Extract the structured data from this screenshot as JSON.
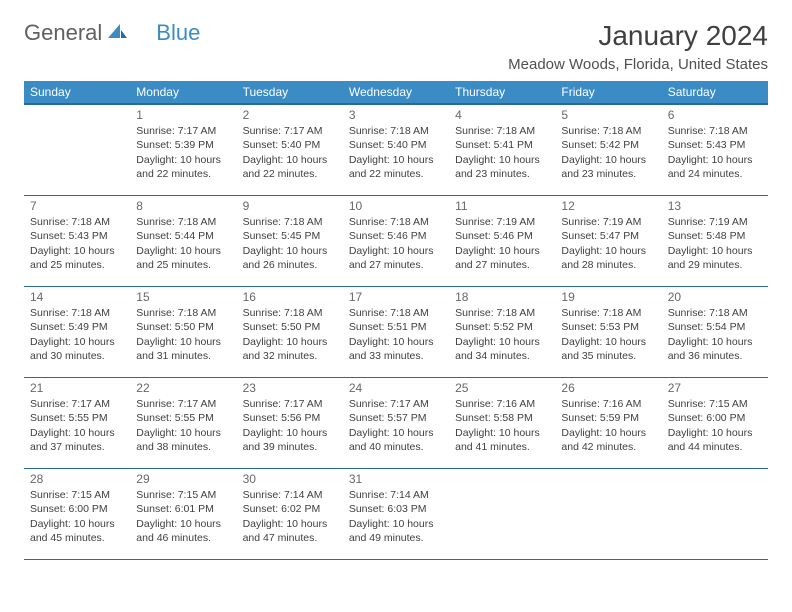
{
  "brand": {
    "text1": "General",
    "text2": "Blue",
    "icon_color": "#3b8bc4"
  },
  "title": "January 2024",
  "location": "Meadow Woods, Florida, United States",
  "weekday_header_bg": "#3b8bc4",
  "weekday_header_fg": "#ffffff",
  "border_color": "#2a6a9a",
  "weekdays": [
    "Sunday",
    "Monday",
    "Tuesday",
    "Wednesday",
    "Thursday",
    "Friday",
    "Saturday"
  ],
  "start_offset": 1,
  "days": [
    {
      "n": 1,
      "sunrise": "7:17 AM",
      "sunset": "5:39 PM",
      "daylight": "10 hours and 22 minutes."
    },
    {
      "n": 2,
      "sunrise": "7:17 AM",
      "sunset": "5:40 PM",
      "daylight": "10 hours and 22 minutes."
    },
    {
      "n": 3,
      "sunrise": "7:18 AM",
      "sunset": "5:40 PM",
      "daylight": "10 hours and 22 minutes."
    },
    {
      "n": 4,
      "sunrise": "7:18 AM",
      "sunset": "5:41 PM",
      "daylight": "10 hours and 23 minutes."
    },
    {
      "n": 5,
      "sunrise": "7:18 AM",
      "sunset": "5:42 PM",
      "daylight": "10 hours and 23 minutes."
    },
    {
      "n": 6,
      "sunrise": "7:18 AM",
      "sunset": "5:43 PM",
      "daylight": "10 hours and 24 minutes."
    },
    {
      "n": 7,
      "sunrise": "7:18 AM",
      "sunset": "5:43 PM",
      "daylight": "10 hours and 25 minutes."
    },
    {
      "n": 8,
      "sunrise": "7:18 AM",
      "sunset": "5:44 PM",
      "daylight": "10 hours and 25 minutes."
    },
    {
      "n": 9,
      "sunrise": "7:18 AM",
      "sunset": "5:45 PM",
      "daylight": "10 hours and 26 minutes."
    },
    {
      "n": 10,
      "sunrise": "7:18 AM",
      "sunset": "5:46 PM",
      "daylight": "10 hours and 27 minutes."
    },
    {
      "n": 11,
      "sunrise": "7:19 AM",
      "sunset": "5:46 PM",
      "daylight": "10 hours and 27 minutes."
    },
    {
      "n": 12,
      "sunrise": "7:19 AM",
      "sunset": "5:47 PM",
      "daylight": "10 hours and 28 minutes."
    },
    {
      "n": 13,
      "sunrise": "7:19 AM",
      "sunset": "5:48 PM",
      "daylight": "10 hours and 29 minutes."
    },
    {
      "n": 14,
      "sunrise": "7:18 AM",
      "sunset": "5:49 PM",
      "daylight": "10 hours and 30 minutes."
    },
    {
      "n": 15,
      "sunrise": "7:18 AM",
      "sunset": "5:50 PM",
      "daylight": "10 hours and 31 minutes."
    },
    {
      "n": 16,
      "sunrise": "7:18 AM",
      "sunset": "5:50 PM",
      "daylight": "10 hours and 32 minutes."
    },
    {
      "n": 17,
      "sunrise": "7:18 AM",
      "sunset": "5:51 PM",
      "daylight": "10 hours and 33 minutes."
    },
    {
      "n": 18,
      "sunrise": "7:18 AM",
      "sunset": "5:52 PM",
      "daylight": "10 hours and 34 minutes."
    },
    {
      "n": 19,
      "sunrise": "7:18 AM",
      "sunset": "5:53 PM",
      "daylight": "10 hours and 35 minutes."
    },
    {
      "n": 20,
      "sunrise": "7:18 AM",
      "sunset": "5:54 PM",
      "daylight": "10 hours and 36 minutes."
    },
    {
      "n": 21,
      "sunrise": "7:17 AM",
      "sunset": "5:55 PM",
      "daylight": "10 hours and 37 minutes."
    },
    {
      "n": 22,
      "sunrise": "7:17 AM",
      "sunset": "5:55 PM",
      "daylight": "10 hours and 38 minutes."
    },
    {
      "n": 23,
      "sunrise": "7:17 AM",
      "sunset": "5:56 PM",
      "daylight": "10 hours and 39 minutes."
    },
    {
      "n": 24,
      "sunrise": "7:17 AM",
      "sunset": "5:57 PM",
      "daylight": "10 hours and 40 minutes."
    },
    {
      "n": 25,
      "sunrise": "7:16 AM",
      "sunset": "5:58 PM",
      "daylight": "10 hours and 41 minutes."
    },
    {
      "n": 26,
      "sunrise": "7:16 AM",
      "sunset": "5:59 PM",
      "daylight": "10 hours and 42 minutes."
    },
    {
      "n": 27,
      "sunrise": "7:15 AM",
      "sunset": "6:00 PM",
      "daylight": "10 hours and 44 minutes."
    },
    {
      "n": 28,
      "sunrise": "7:15 AM",
      "sunset": "6:00 PM",
      "daylight": "10 hours and 45 minutes."
    },
    {
      "n": 29,
      "sunrise": "7:15 AM",
      "sunset": "6:01 PM",
      "daylight": "10 hours and 46 minutes."
    },
    {
      "n": 30,
      "sunrise": "7:14 AM",
      "sunset": "6:02 PM",
      "daylight": "10 hours and 47 minutes."
    },
    {
      "n": 31,
      "sunrise": "7:14 AM",
      "sunset": "6:03 PM",
      "daylight": "10 hours and 49 minutes."
    }
  ],
  "labels": {
    "sunrise": "Sunrise:",
    "sunset": "Sunset:",
    "daylight": "Daylight:"
  }
}
